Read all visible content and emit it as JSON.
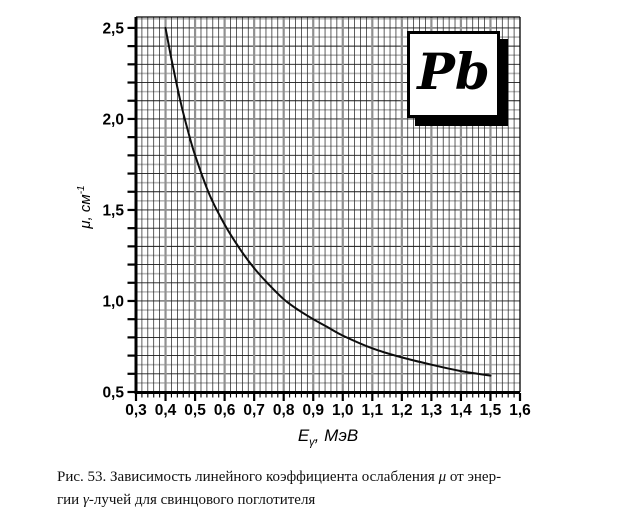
{
  "figure": {
    "annotation": "Pb",
    "x_axis_title": {
      "main": "E",
      "sub": "γ",
      "rest": ", МэВ"
    },
    "y_axis_title": {
      "main": "μ",
      "rest": ", см",
      "sup": "-1"
    },
    "caption": {
      "line1_prefix": "Рис. 53. Зависимость линейного коэффициента ослабления ",
      "line1_symbol": "μ",
      "line1_suffix": " от энер-",
      "line2_prefix": "гии ",
      "line2_symbol": "γ",
      "line2_suffix": "-лучей для свинцового поглотителя"
    }
  },
  "chart_data": {
    "type": "line",
    "title": "",
    "xlabel": "E_γ, МэВ",
    "ylabel": "μ, см⁻¹",
    "xlim": [
      0.3,
      1.6
    ],
    "ylim": [
      0.5,
      2.56
    ],
    "grid": true,
    "x_tick_values": [
      0.3,
      0.4,
      0.5,
      0.6,
      0.7,
      0.8,
      0.9,
      1.0,
      1.1,
      1.2,
      1.3,
      1.4,
      1.5,
      1.6
    ],
    "x_tick_labels": [
      "0,3",
      "0,4",
      "0,5",
      "0,6",
      "0,7",
      "0,8",
      "0,9",
      "1,0",
      "1,1",
      "1,2",
      "1,3",
      "1,4",
      "1,5",
      "1,6"
    ],
    "x_minor_step": 0.02,
    "y_tick_step": 0.1,
    "y_label_values": [
      0.5,
      1.0,
      1.5,
      2.0,
      2.5
    ],
    "y_tick_labels": [
      "0,5",
      "1,0",
      "1,5",
      "2,0",
      "2,5"
    ],
    "y_minor_grid_step": 0.05,
    "annotation": "Pb",
    "legend": "none",
    "series": [
      {
        "name": "Pb",
        "x": [
          0.4,
          0.42,
          0.45,
          0.475,
          0.5,
          0.55,
          0.6,
          0.65,
          0.7,
          0.75,
          0.8,
          0.85,
          0.9,
          0.95,
          1.0,
          1.1,
          1.2,
          1.3,
          1.4,
          1.5
        ],
        "y": [
          2.5,
          2.33,
          2.1,
          1.94,
          1.8,
          1.58,
          1.42,
          1.29,
          1.18,
          1.09,
          1.01,
          0.95,
          0.9,
          0.855,
          0.81,
          0.74,
          0.69,
          0.65,
          0.615,
          0.59
        ]
      }
    ],
    "colors": {
      "curve": "#0d0d0d",
      "axis": "#000000",
      "grid_minor_x": "#1a1a1a",
      "grid_major_x": "#909090",
      "grid_major_y": "#1a1a1a",
      "grid_minor_y": "#b8b8b8",
      "tick_label": "#000000"
    }
  }
}
